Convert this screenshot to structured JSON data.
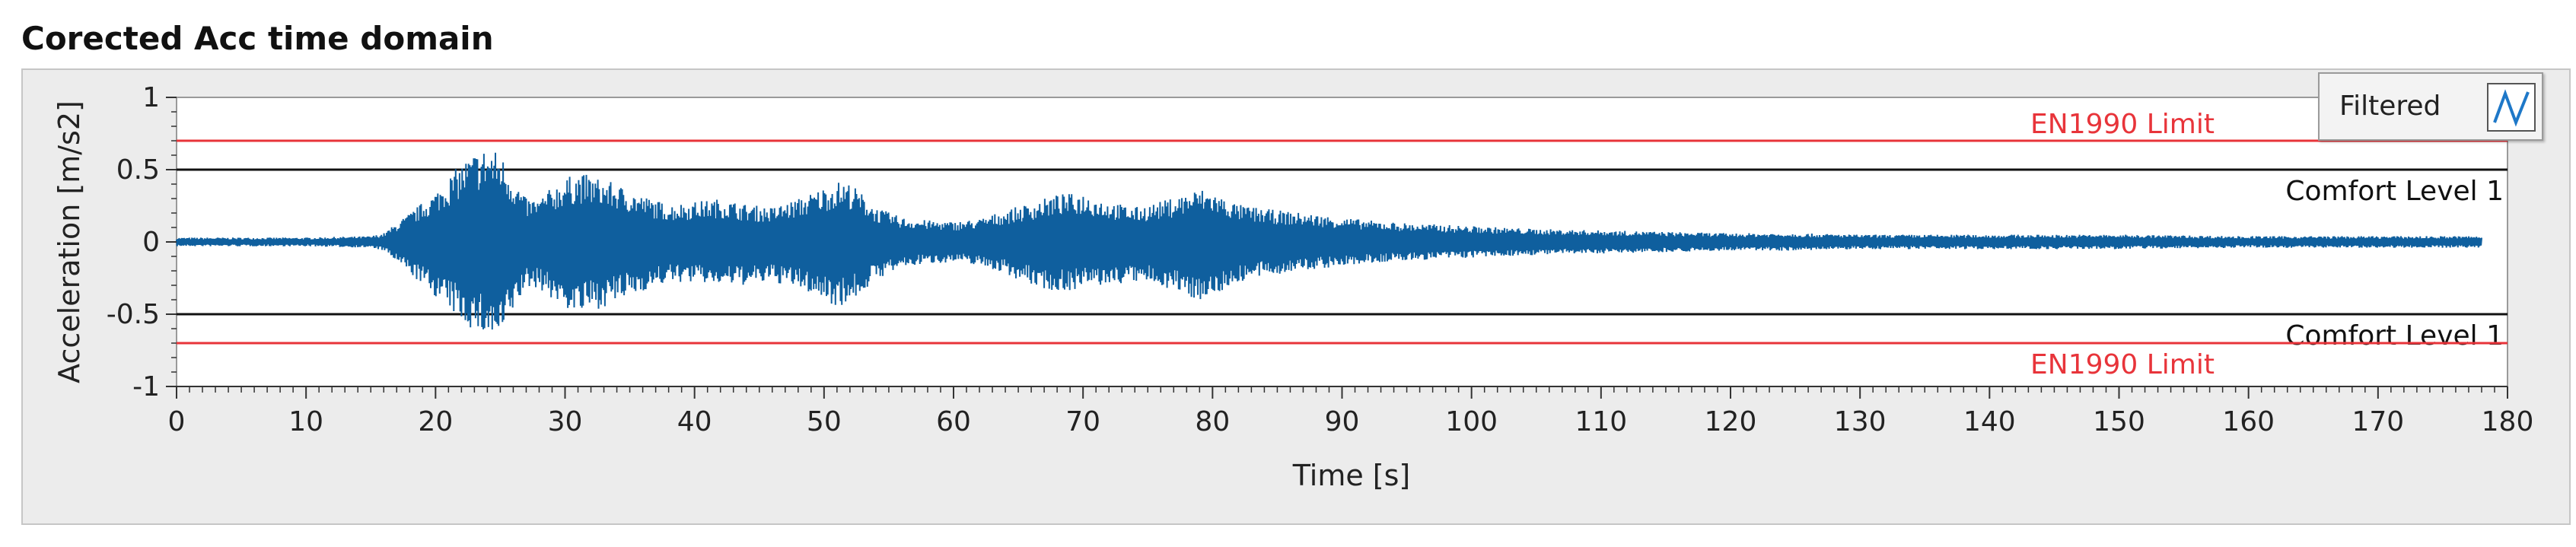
{
  "panel": {
    "title": "Corected Acc time domain"
  },
  "legend": {
    "label": "Filtered",
    "icon": "waveform-icon"
  },
  "colors": {
    "signal": "#0f5f9e",
    "limit": "#e8343a",
    "comfort": "#111111",
    "plot_bg": "#ffffff",
    "frame_bg": "#ececec"
  },
  "chart_data": {
    "type": "line",
    "xlabel": "Time [s]",
    "ylabel": "Acceleration [m/s2]",
    "xlim": [
      0,
      180
    ],
    "ylim": [
      -1,
      1
    ],
    "x_ticks": [
      0,
      10,
      20,
      30,
      40,
      50,
      60,
      70,
      80,
      90,
      100,
      110,
      120,
      130,
      140,
      150,
      160,
      170,
      180
    ],
    "y_ticks": [
      1,
      0.5,
      0,
      -0.5,
      -1
    ],
    "y_tick_labels": [
      "1",
      "0.5",
      "0",
      "-0.5",
      "-1"
    ],
    "grid": false,
    "legend_position": "top-right",
    "series": [
      {
        "name": "Filtered",
        "kind": "oscillating signal envelope",
        "envelope_time": [
          0,
          5,
          10,
          15,
          16,
          18,
          20,
          22,
          23,
          24,
          25,
          26,
          27,
          28,
          29,
          30,
          31,
          32,
          34,
          36,
          38,
          40,
          42,
          44,
          46,
          48,
          50,
          51,
          52,
          53,
          54,
          56,
          58,
          60,
          62,
          64,
          66,
          68,
          70,
          72,
          74,
          76,
          78,
          79,
          80,
          81,
          82,
          84,
          86,
          88,
          90,
          92,
          95,
          100,
          105,
          110,
          115,
          120,
          125,
          130,
          140,
          150,
          160,
          170,
          175,
          178
        ],
        "envelope_upper": [
          0.03,
          0.03,
          0.03,
          0.04,
          0.06,
          0.2,
          0.35,
          0.55,
          0.62,
          0.66,
          0.62,
          0.45,
          0.3,
          0.3,
          0.38,
          0.44,
          0.48,
          0.46,
          0.4,
          0.32,
          0.26,
          0.28,
          0.3,
          0.26,
          0.24,
          0.3,
          0.38,
          0.42,
          0.41,
          0.33,
          0.24,
          0.17,
          0.15,
          0.14,
          0.16,
          0.22,
          0.27,
          0.33,
          0.34,
          0.28,
          0.24,
          0.28,
          0.34,
          0.37,
          0.35,
          0.3,
          0.26,
          0.23,
          0.21,
          0.19,
          0.17,
          0.15,
          0.13,
          0.11,
          0.09,
          0.08,
          0.07,
          0.06,
          0.06,
          0.05,
          0.05,
          0.05,
          0.04,
          0.04,
          0.04,
          0.04
        ],
        "envelope_lower": [
          -0.03,
          -0.03,
          -0.03,
          -0.04,
          -0.06,
          -0.22,
          -0.38,
          -0.55,
          -0.62,
          -0.66,
          -0.7,
          -0.48,
          -0.32,
          -0.32,
          -0.4,
          -0.46,
          -0.5,
          -0.48,
          -0.42,
          -0.34,
          -0.28,
          -0.28,
          -0.3,
          -0.3,
          -0.28,
          -0.32,
          -0.4,
          -0.45,
          -0.42,
          -0.35,
          -0.26,
          -0.18,
          -0.15,
          -0.14,
          -0.16,
          -0.22,
          -0.3,
          -0.35,
          -0.32,
          -0.3,
          -0.28,
          -0.3,
          -0.38,
          -0.4,
          -0.38,
          -0.33,
          -0.28,
          -0.24,
          -0.21,
          -0.19,
          -0.17,
          -0.15,
          -0.13,
          -0.11,
          -0.09,
          -0.08,
          -0.07,
          -0.06,
          -0.06,
          -0.05,
          -0.05,
          -0.05,
          -0.04,
          -0.04,
          -0.04,
          -0.04
        ]
      }
    ],
    "reference_lines": [
      {
        "label": "EN1990 Limit",
        "y": 0.7,
        "color": "#e8343a"
      },
      {
        "label": "Comfort Level 1",
        "y": 0.5,
        "color": "#111111"
      },
      {
        "label": "Comfort Level 1",
        "y": -0.5,
        "color": "#111111"
      },
      {
        "label": "EN1990 Limit",
        "y": -0.7,
        "color": "#e8343a"
      }
    ]
  }
}
